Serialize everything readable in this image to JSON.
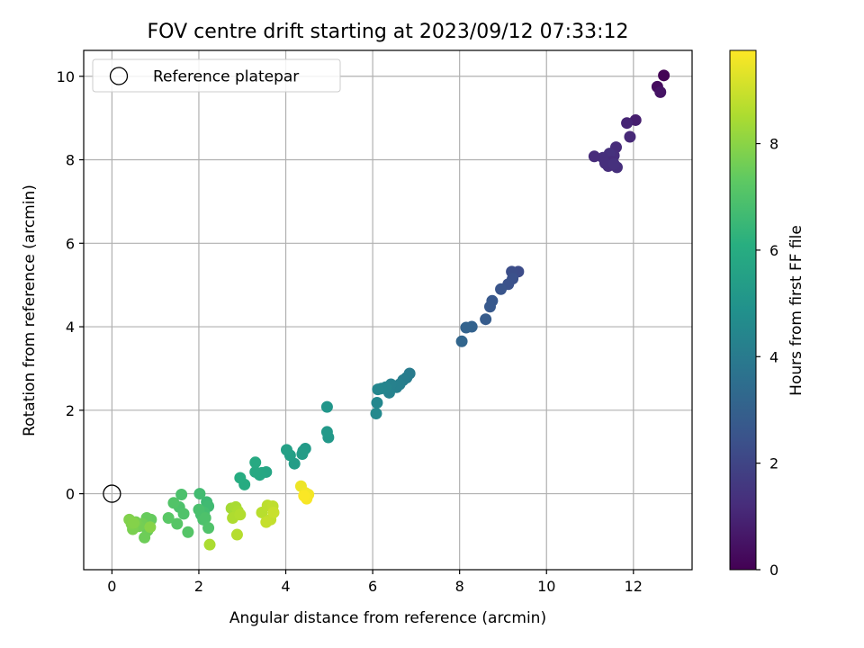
{
  "chart_data": {
    "type": "scatter",
    "title": "FOV centre drift starting at 2023/09/12 07:33:12",
    "xlabel": "Angular distance from reference (arcmin)",
    "ylabel": "Rotation from reference (arcmin)",
    "xlim": [
      -0.65,
      13.35
    ],
    "ylim": [
      -1.82,
      10.62
    ],
    "xticks": [
      0,
      2,
      4,
      6,
      8,
      10,
      12
    ],
    "yticks": [
      0,
      2,
      4,
      6,
      8,
      10
    ],
    "grid": true,
    "colormap": "viridis",
    "colorbar": {
      "label": "Hours from first FF file",
      "range": [
        0,
        9.75
      ],
      "ticks": [
        0,
        2,
        4,
        6,
        8
      ]
    },
    "legend": {
      "placement": "upper-left",
      "entries": [
        {
          "label": "Reference platepar",
          "marker": "open-circle"
        }
      ]
    },
    "reference_point": {
      "x": 0,
      "y": 0
    },
    "series": [
      {
        "x": [
          12.7,
          12.55,
          12.62,
          12.05,
          11.85,
          11.92,
          11.6,
          11.55,
          11.62,
          11.45,
          11.3,
          11.5,
          11.42,
          11.35,
          11.1,
          11.55,
          9.35,
          9.2,
          9.22,
          9.12,
          8.95,
          8.75,
          8.7,
          8.6,
          8.28,
          8.15,
          8.05,
          6.85,
          6.78,
          6.7,
          6.62,
          6.55,
          6.42,
          6.38,
          6.3,
          6.2,
          6.12,
          6.1,
          6.08,
          4.95,
          4.98,
          4.95,
          4.45,
          4.4,
          4.38,
          4.2,
          4.1,
          4.02,
          3.55,
          3.45,
          3.4,
          3.3,
          3.3,
          3.05,
          2.95,
          2.18,
          2.22,
          2.02,
          2.12,
          2.05,
          2.0,
          2.1,
          2.15,
          2.22,
          1.6,
          1.55,
          1.65,
          1.42,
          1.75,
          1.5,
          1.3,
          0.9,
          0.8,
          0.82,
          0.75,
          0.7,
          0.62,
          0.55,
          0.48,
          0.45,
          0.4,
          0.5,
          0.88,
          2.75,
          2.85,
          2.9,
          2.78,
          2.95,
          2.88,
          3.45,
          3.58,
          3.7,
          3.65,
          3.55,
          3.72,
          2.25,
          4.35,
          4.45,
          4.52,
          4.48,
          4.42
        ],
        "y": [
          10.02,
          9.75,
          9.62,
          8.95,
          8.88,
          8.55,
          8.3,
          8.1,
          7.82,
          8.15,
          8.05,
          7.95,
          7.85,
          7.92,
          8.08,
          7.9,
          5.32,
          5.32,
          5.15,
          5.02,
          4.9,
          4.62,
          4.48,
          4.18,
          4.0,
          3.98,
          3.65,
          2.88,
          2.78,
          2.72,
          2.62,
          2.55,
          2.62,
          2.42,
          2.55,
          2.52,
          2.5,
          2.18,
          1.92,
          2.08,
          1.35,
          1.48,
          1.08,
          1.02,
          0.95,
          0.72,
          0.92,
          1.05,
          0.52,
          0.5,
          0.45,
          0.52,
          0.75,
          0.22,
          0.38,
          -0.2,
          -0.3,
          0.0,
          -0.45,
          -0.5,
          -0.38,
          -0.62,
          -0.58,
          -0.82,
          -0.02,
          -0.32,
          -0.48,
          -0.22,
          -0.92,
          -0.72,
          -0.58,
          -0.62,
          -0.58,
          -0.88,
          -1.05,
          -0.72,
          -0.78,
          -0.68,
          -0.85,
          -0.72,
          -0.62,
          -0.7,
          -0.8,
          -0.35,
          -0.32,
          -0.42,
          -0.58,
          -0.5,
          -0.98,
          -0.45,
          -0.28,
          -0.3,
          -0.62,
          -0.68,
          -0.45,
          -1.22,
          0.18,
          0.02,
          -0.02,
          -0.12,
          -0.05
        ],
        "hours": [
          0.05,
          0.3,
          0.5,
          0.8,
          1.0,
          1.1,
          1.2,
          1.25,
          1.3,
          1.35,
          1.3,
          1.2,
          1.25,
          1.3,
          1.2,
          1.35,
          2.25,
          2.3,
          2.4,
          2.45,
          2.55,
          2.65,
          2.7,
          2.8,
          3.05,
          3.1,
          3.2,
          4.0,
          4.05,
          4.1,
          4.15,
          4.2,
          4.25,
          4.3,
          4.35,
          4.4,
          4.45,
          4.5,
          4.55,
          5.1,
          5.15,
          5.2,
          5.25,
          5.3,
          5.35,
          5.4,
          5.45,
          5.5,
          5.7,
          5.75,
          5.8,
          5.85,
          5.9,
          5.95,
          6.0,
          6.6,
          6.65,
          6.7,
          6.75,
          6.8,
          6.85,
          6.9,
          6.95,
          7.0,
          6.9,
          6.95,
          7.0,
          7.05,
          7.1,
          7.15,
          7.2,
          7.4,
          7.45,
          7.5,
          7.55,
          7.6,
          7.65,
          7.7,
          7.75,
          7.8,
          7.85,
          7.9,
          7.95,
          8.4,
          8.45,
          8.5,
          8.55,
          8.6,
          8.65,
          8.7,
          8.75,
          8.8,
          8.85,
          8.9,
          8.95,
          8.5,
          9.5,
          9.55,
          9.6,
          9.65,
          9.7
        ]
      }
    ]
  }
}
